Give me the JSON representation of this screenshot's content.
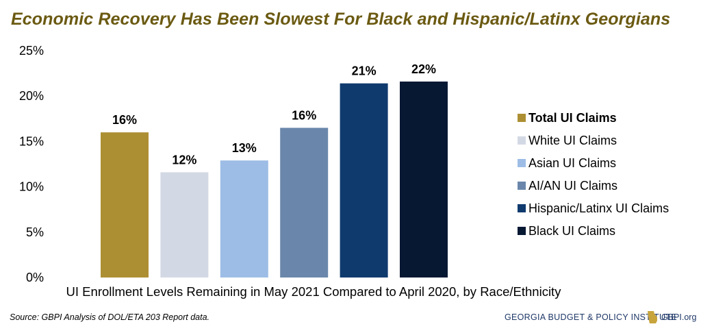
{
  "title": "Economic Recovery Has Been Slowest For Black and Hispanic/Latinx Georgians",
  "source": "Source: GBPI Analysis of DOL/ETA 203 Report data.",
  "footer": {
    "org": "GEORGIA BUDGET & POLICY INSTITUTE",
    "url": "GBPI.org",
    "logo_icon": "georgia-state-icon"
  },
  "chart_data": {
    "type": "bar",
    "title": "Economic Recovery Has Been Slowest For Black and Hispanic/Latinx Georgians",
    "xlabel": "UI Enrollment Levels Remaining in May 2021 Compared to April 2020, by Race/Ethnicity",
    "ylabel": "",
    "ylim": [
      0,
      25
    ],
    "yticks": [
      "0%",
      "5%",
      "10%",
      "15%",
      "20%",
      "25%"
    ],
    "grid": false,
    "legend_position": "right",
    "categories": [
      "Total UI Claims",
      "White UI Claims",
      "Asian UI Claims",
      "AI/AN UI Claims",
      "Hispanic/Latinx UI Claims",
      "Black UI Claims"
    ],
    "values": [
      16.0,
      11.6,
      12.9,
      16.5,
      21.4,
      21.6
    ],
    "data_labels": [
      "16%",
      "12%",
      "13%",
      "16%",
      "21%",
      "22%"
    ],
    "colors": [
      "#ad8f33",
      "#d3d9e4",
      "#9dbde6",
      "#6a87ab",
      "#0f3a6e",
      "#071833"
    ],
    "legend_bold": [
      true,
      false,
      false,
      false,
      false,
      false
    ]
  }
}
